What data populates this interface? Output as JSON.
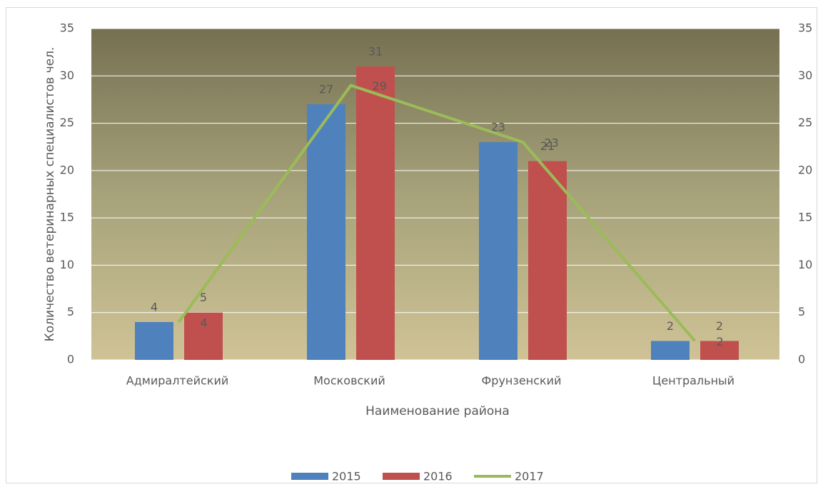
{
  "chart_data": {
    "type": "bar",
    "categories": [
      "Адмиралтейский",
      "Московский",
      "Фрунзенский",
      "Центральный"
    ],
    "series": [
      {
        "name": "2015",
        "color": "#4f81bd",
        "values": [
          4,
          27,
          23,
          2
        ]
      },
      {
        "name": "2016",
        "color": "#c0504d",
        "values": [
          5,
          31,
          21,
          2
        ]
      },
      {
        "name": "2017",
        "color": "#9bbb59",
        "type": "line",
        "axis": "y2",
        "values": [
          4,
          29,
          23,
          2
        ]
      }
    ],
    "ylabel": "Количество ветеринарных специалистов чел.",
    "xlabel": "Наименование района",
    "ylim": [
      0,
      35
    ],
    "yticks": [
      0,
      5,
      10,
      15,
      20,
      25,
      30,
      35
    ],
    "y2lim": [
      0,
      35
    ],
    "y2ticks": [
      0,
      5,
      10,
      15,
      20,
      25,
      30,
      35
    ],
    "grid": true,
    "legend": "bottom"
  }
}
